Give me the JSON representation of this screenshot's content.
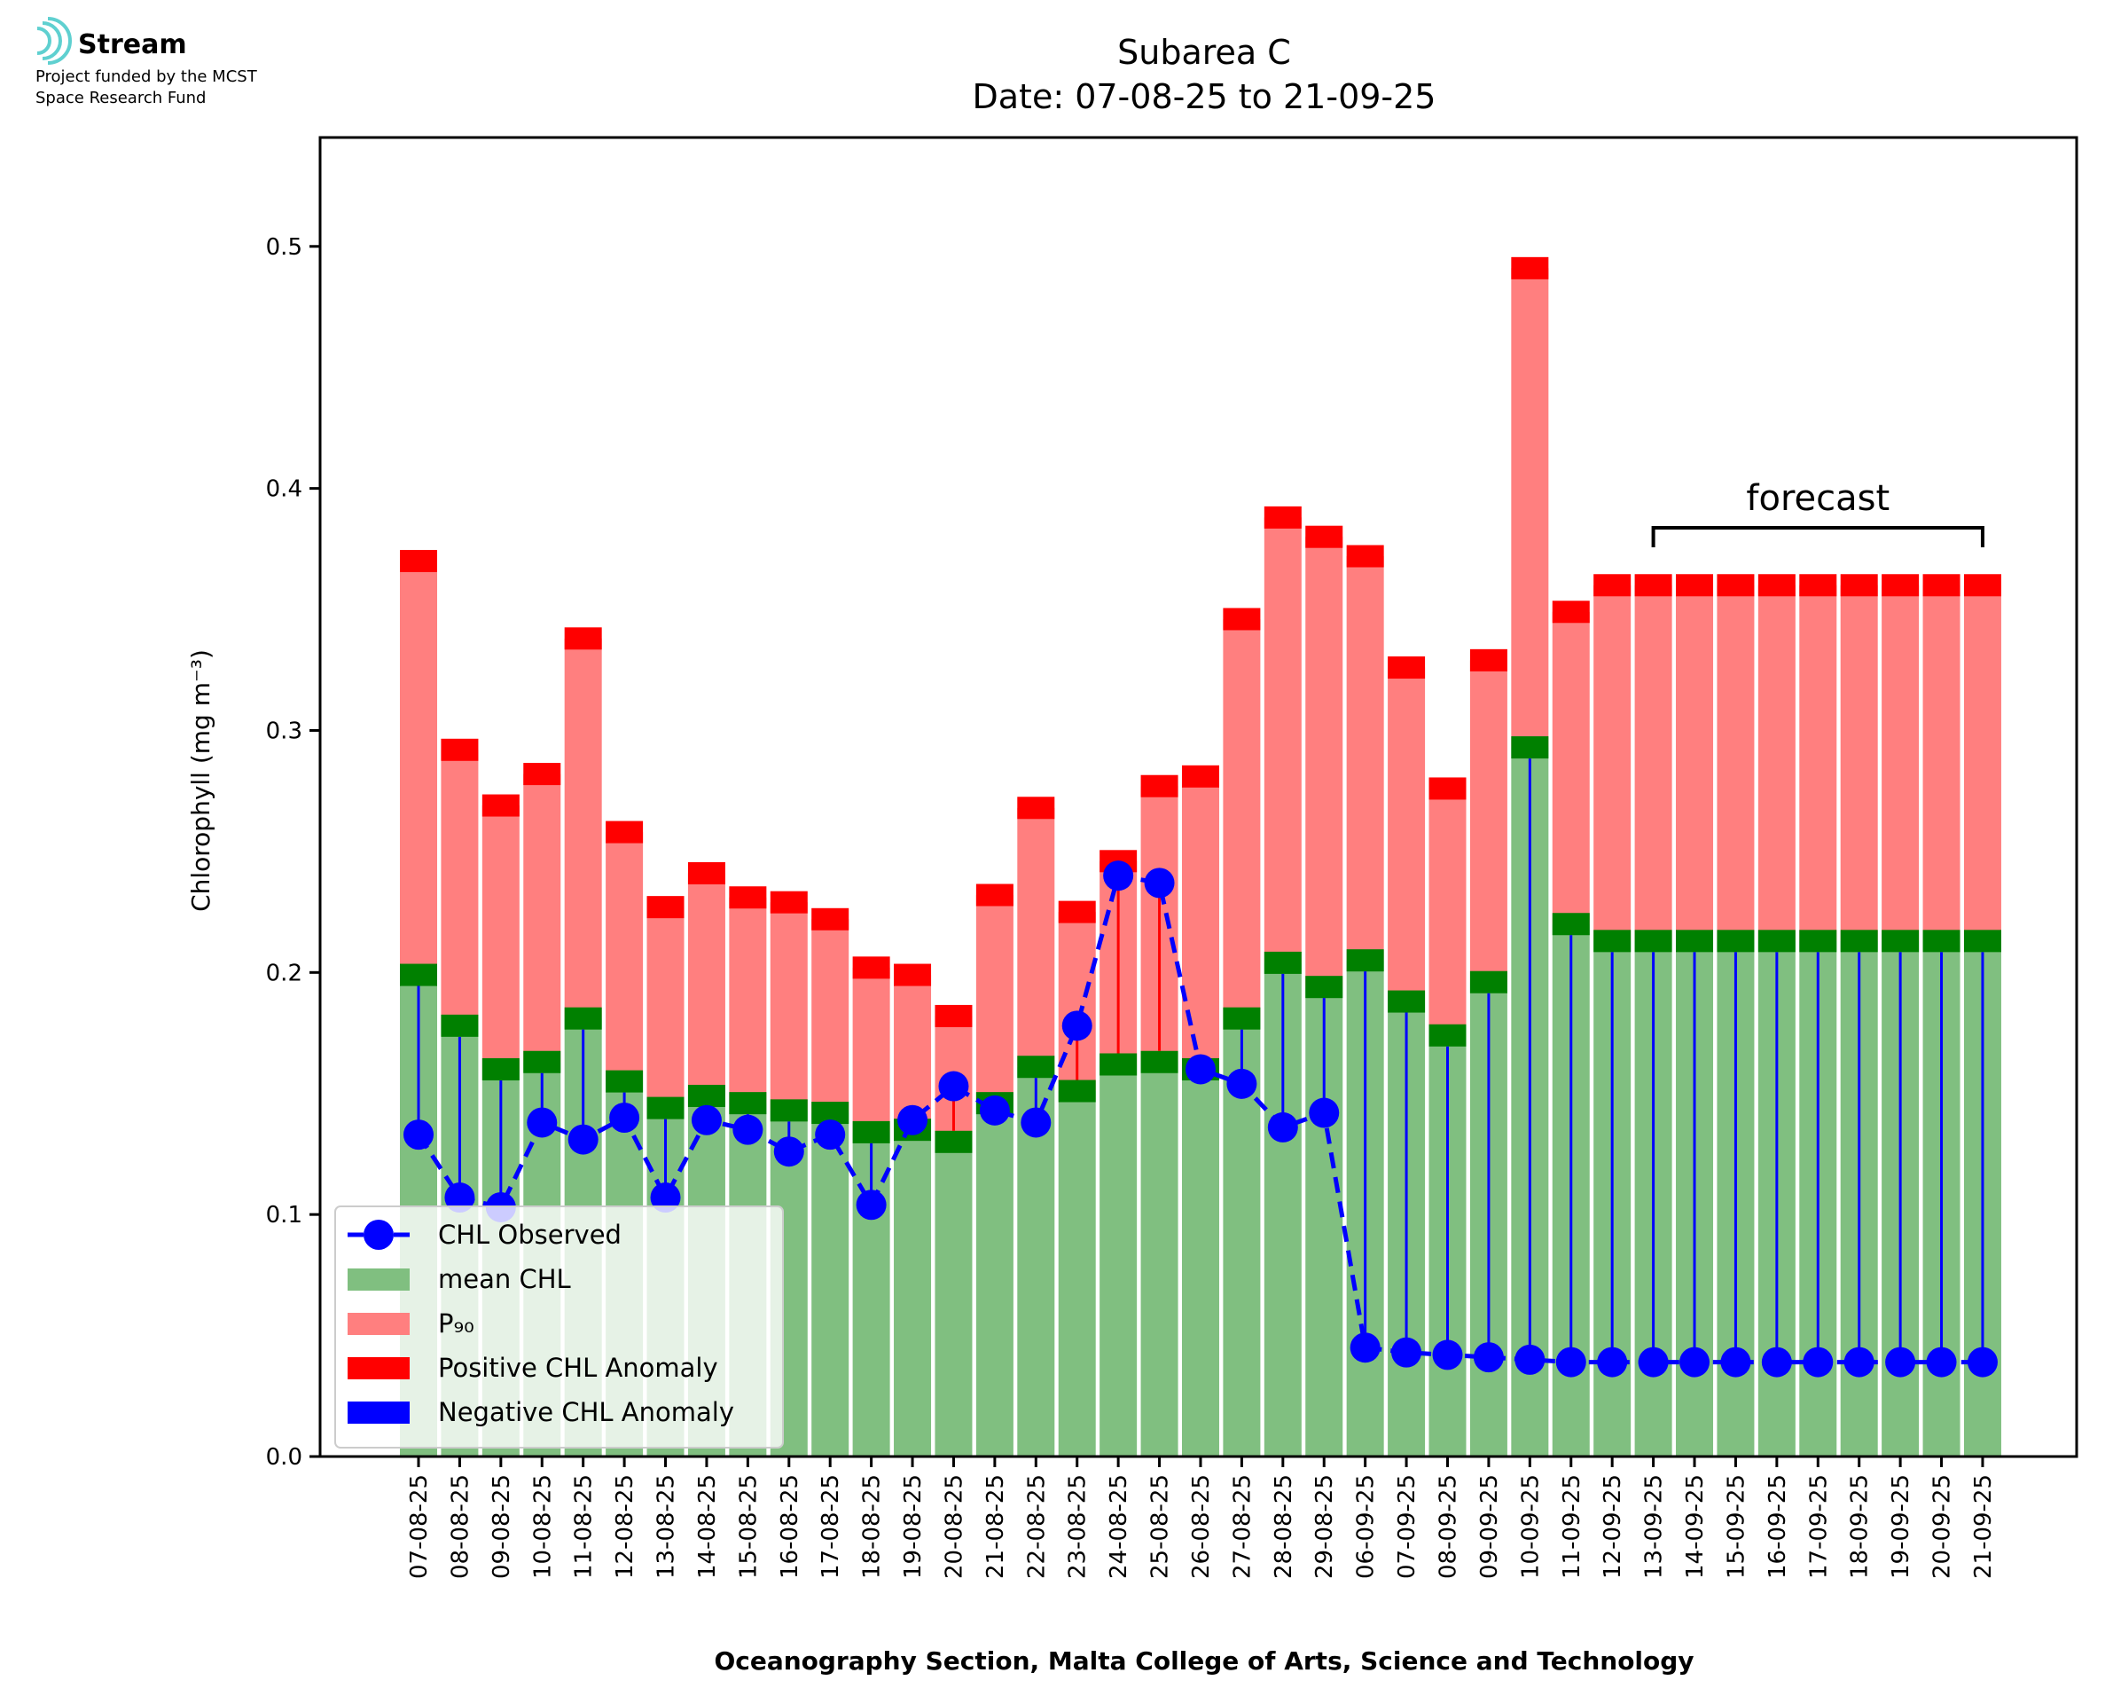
{
  "logo": {
    "name": "Stream",
    "caption_line1": "Project funded by the MCST",
    "caption_line2": "Space Research Fund"
  },
  "chart_data": {
    "type": "bar",
    "title": "Subarea C",
    "subtitle": "Date: 07-08-25 to 21-09-25",
    "xlabel": "Oceanography Section, Malta College of Arts, Science and Technology",
    "ylabel": "Chlorophyll (mg m⁻³)",
    "ylim": [
      0,
      0.545
    ],
    "yticks": [
      0.0,
      0.1,
      0.2,
      0.3,
      0.4,
      0.5
    ],
    "ytick_labels": [
      "0.0",
      "0.1",
      "0.2",
      "0.3",
      "0.4",
      "0.5"
    ],
    "legend_position": "lower-left",
    "annotation": "forecast",
    "forecast_range": [
      "13-09-25",
      "21-09-25"
    ],
    "categories": [
      "07-08-25",
      "08-08-25",
      "09-08-25",
      "10-08-25",
      "11-08-25",
      "12-08-25",
      "13-08-25",
      "14-08-25",
      "15-08-25",
      "16-08-25",
      "17-08-25",
      "18-08-25",
      "19-08-25",
      "20-08-25",
      "21-08-25",
      "22-08-25",
      "23-08-25",
      "24-08-25",
      "25-08-25",
      "26-08-25",
      "27-08-25",
      "28-08-25",
      "29-08-25",
      "06-09-25",
      "07-09-25",
      "08-09-25",
      "09-09-25",
      "10-09-25",
      "11-09-25",
      "12-09-25",
      "13-09-25",
      "14-09-25",
      "15-09-25",
      "16-09-25",
      "17-09-25",
      "18-09-25",
      "19-09-25",
      "20-09-25",
      "21-09-25"
    ],
    "series": [
      {
        "name": "mean CHL",
        "values": [
          0.199,
          0.178,
          0.16,
          0.163,
          0.181,
          0.155,
          0.144,
          0.149,
          0.146,
          0.143,
          0.142,
          0.134,
          0.135,
          0.13,
          0.146,
          0.161,
          0.151,
          0.162,
          0.163,
          0.16,
          0.181,
          0.204,
          0.194,
          0.205,
          0.188,
          0.174,
          0.196,
          0.293,
          0.22,
          0.213,
          0.213,
          0.213,
          0.213,
          0.213,
          0.213,
          0.213,
          0.213,
          0.213,
          0.213
        ]
      },
      {
        "name": "P₉₀",
        "values": [
          0.37,
          0.292,
          0.269,
          0.282,
          0.338,
          0.258,
          0.227,
          0.241,
          0.231,
          0.229,
          0.222,
          0.202,
          0.199,
          0.182,
          0.232,
          0.268,
          0.225,
          0.246,
          0.277,
          0.281,
          0.346,
          0.388,
          0.38,
          0.372,
          0.326,
          0.276,
          0.329,
          0.491,
          0.349,
          0.36,
          0.36,
          0.36,
          0.36,
          0.36,
          0.36,
          0.36,
          0.36,
          0.36,
          0.36
        ]
      },
      {
        "name": "CHL Observed",
        "values": [
          0.133,
          0.107,
          0.103,
          0.138,
          0.131,
          0.14,
          0.107,
          0.139,
          0.135,
          0.126,
          0.133,
          0.104,
          0.139,
          0.153,
          0.143,
          0.138,
          0.178,
          0.24,
          0.237,
          0.16,
          0.154,
          0.136,
          0.142,
          0.045,
          0.043,
          0.042,
          0.041,
          0.04,
          0.039,
          0.039,
          0.039,
          0.039,
          0.039,
          0.039,
          0.039,
          0.039,
          0.039,
          0.039,
          0.039
        ]
      }
    ],
    "legend": [
      "CHL Observed",
      "mean CHL",
      "P₉₀",
      "Positive CHL Anomaly",
      "Negative CHL Anomaly"
    ],
    "colors": {
      "mean": "#80bf80",
      "mean_cap": "#008000",
      "p90": "#ff7f7f",
      "p90_cap": "#ff0000",
      "observed": "#0000ff",
      "positive_anomaly": "#ff0000",
      "negative_anomaly": "#0000ff"
    }
  }
}
